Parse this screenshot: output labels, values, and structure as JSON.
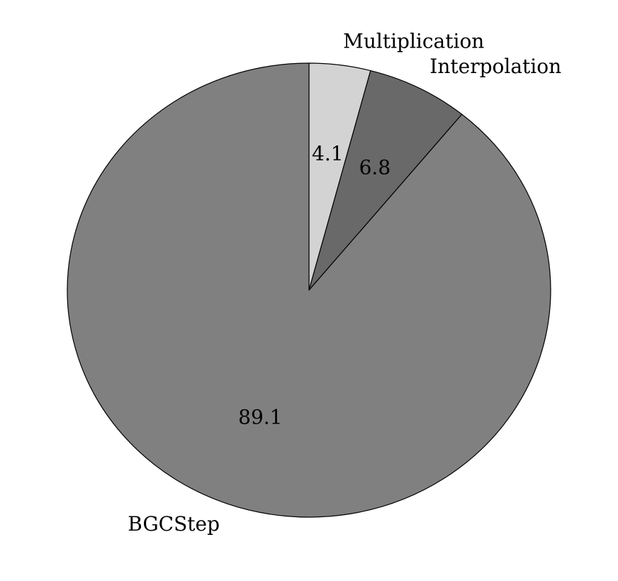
{
  "chart_data": {
    "type": "pie",
    "title": "",
    "start_angle_deg": 90,
    "direction": "clockwise",
    "slices": [
      {
        "label": "Multiplication",
        "value": 4.1,
        "value_label": "4.1",
        "color": "#d3d3d3"
      },
      {
        "label": "Interpolation",
        "value": 6.8,
        "value_label": "6.8",
        "color": "#696969"
      },
      {
        "label": "BGCStep",
        "value": 89.1,
        "value_label": "89.1",
        "color": "#808080"
      }
    ]
  }
}
